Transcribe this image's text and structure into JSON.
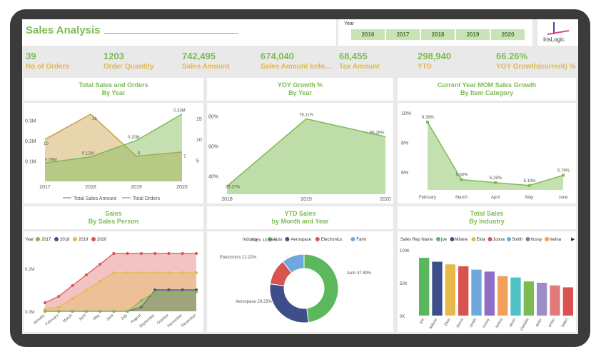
{
  "title": "Sales Analysis",
  "year_slicer": {
    "label": "Year",
    "years": [
      "2016",
      "2017",
      "2018",
      "2019",
      "2020"
    ]
  },
  "logo": {
    "text": "IrisLogic"
  },
  "kpis": [
    {
      "value": "39",
      "label": "No of Orders"
    },
    {
      "value": "1203",
      "label": "Order Quantity"
    },
    {
      "value": "742,495",
      "label": "Sales Amount"
    },
    {
      "value": "674,040",
      "label": "Sales Amount befo..."
    },
    {
      "value": "68,455",
      "label": "Tax Amount"
    },
    {
      "value": "298,940",
      "label": "YTD"
    },
    {
      "value": "66.26%",
      "label": "YOY Growth(current) %"
    }
  ],
  "panels": {
    "p1": {
      "line1": "Total Sales and Orders",
      "line2": "By Year"
    },
    "p2": {
      "line1": "YOY Growth %",
      "line2": "By Year"
    },
    "p3": {
      "line1": "Current Year MOM Sales Growth",
      "line2": "By Item Category"
    },
    "p4": {
      "line1": "Sales",
      "line2": "By Sales Person"
    },
    "p5": {
      "line1": "YTD Sales",
      "line2": "by Month and Year"
    },
    "p6": {
      "line1": "Total Sales",
      "line2": "By Industry"
    }
  },
  "chart_data": [
    {
      "type": "area",
      "x": [
        "2017",
        "2018",
        "2019",
        "2020"
      ],
      "y_left_ticks": [
        "0.1M",
        "0.2M",
        "0.3M"
      ],
      "y_right_ticks": [
        "5",
        "10",
        "15"
      ],
      "series": [
        {
          "name": "Total Sales Amount",
          "axis": "left",
          "values": [
            0.09,
            0.12,
            0.2,
            0.33
          ],
          "labels": [
            "0.09M",
            "0.12M",
            "0.20M",
            "0.33M"
          ],
          "color": "#7dbb52"
        },
        {
          "name": "Total Orders",
          "axis": "right",
          "values": [
            10,
            16,
            6,
            7
          ],
          "labels": [
            "10",
            "16",
            "6",
            "7"
          ],
          "color": "#c9a24a"
        }
      ]
    },
    {
      "type": "area",
      "x": [
        "2018",
        "2019",
        "2020"
      ],
      "y_ticks": [
        "40%",
        "60%",
        "80%"
      ],
      "series": [
        {
          "values": [
            33.37,
            78.11,
            66.26
          ],
          "labels": [
            "33.37%",
            "78.11%",
            "66.26%"
          ],
          "color": "#7dbb52"
        }
      ]
    },
    {
      "type": "area",
      "x": [
        "February",
        "March",
        "April",
        "May",
        "June"
      ],
      "y_ticks": [
        "6%",
        "8%",
        "10%"
      ],
      "series": [
        {
          "values": [
            9.38,
            5.5,
            5.29,
            5.1,
            5.79
          ],
          "labels": [
            "9.38%",
            "5.50%",
            "5.29%",
            "5.10%",
            "5.79%"
          ],
          "color": "#7dbb52"
        }
      ]
    },
    {
      "type": "area",
      "legend_title": "Year",
      "x": [
        "January",
        "February",
        "March",
        "April",
        "May",
        "June",
        "July",
        "August",
        "September",
        "October",
        "November",
        "December"
      ],
      "y_ticks": [
        "0.0M",
        "0.2M"
      ],
      "series": [
        {
          "name": "2017",
          "values": [
            0.0,
            0.0,
            0.0,
            0.0,
            0.0,
            0.0,
            0.0,
            0.05,
            0.09,
            0.09,
            0.09,
            0.09
          ],
          "color": "#7dbb52"
        },
        {
          "name": "2018",
          "values": [
            0.0,
            0.0,
            0.0,
            0.0,
            0.0,
            0.0,
            0.0,
            0.02,
            0.1,
            0.1,
            0.1,
            0.1
          ],
          "color": "#3d4e8a"
        },
        {
          "name": "2019",
          "values": [
            0.01,
            0.02,
            0.06,
            0.1,
            0.14,
            0.18,
            0.18,
            0.18,
            0.18,
            0.18,
            0.18,
            0.18
          ],
          "color": "#e8b94a"
        },
        {
          "name": "2020",
          "values": [
            0.04,
            0.07,
            0.12,
            0.17,
            0.22,
            0.27,
            0.27,
            0.27,
            0.27,
            0.27,
            0.27,
            0.27
          ],
          "color": "#d9534f"
        }
      ]
    },
    {
      "type": "pie",
      "legend_title": "Industry",
      "categories": [
        "Auto",
        "Aerospace",
        "Electronics",
        "Farm"
      ],
      "values": [
        47.89,
        29.23,
        12.22,
        10.66
      ],
      "labels": [
        "Auto 47.89%",
        "Aerospace 29.23%",
        "Electronics 12.22%",
        "Farm 10.66%"
      ],
      "colors": [
        "#5cb85c",
        "#3d4e8a",
        "#d9534f",
        "#6fa8dc"
      ]
    },
    {
      "type": "bar",
      "legend_title": "Sales Rep Name",
      "categories": [
        "joe",
        "Milane",
        "Ekta",
        "Joona",
        "Smith",
        "hussy",
        "helina",
        "kevin",
        "chetalia",
        "peter",
        "amko",
        "helen"
      ],
      "values": [
        88,
        82,
        78,
        75,
        70,
        67,
        60,
        58,
        52,
        50,
        46,
        43
      ],
      "colors": [
        "#5cb85c",
        "#3d4e8a",
        "#e8b94a",
        "#d9534f",
        "#6fa8dc",
        "#8e6ec8",
        "#f0a05a",
        "#4fc3c3",
        "#7dbb52",
        "#9b8ec8",
        "#e07b7b",
        "#d9534f"
      ],
      "legend_items": [
        "joe",
        "Milane",
        "Ekta",
        "Joona",
        "Smith",
        "hussy",
        "helina"
      ],
      "y_ticks": [
        "0K",
        "50K",
        "100K"
      ]
    }
  ]
}
